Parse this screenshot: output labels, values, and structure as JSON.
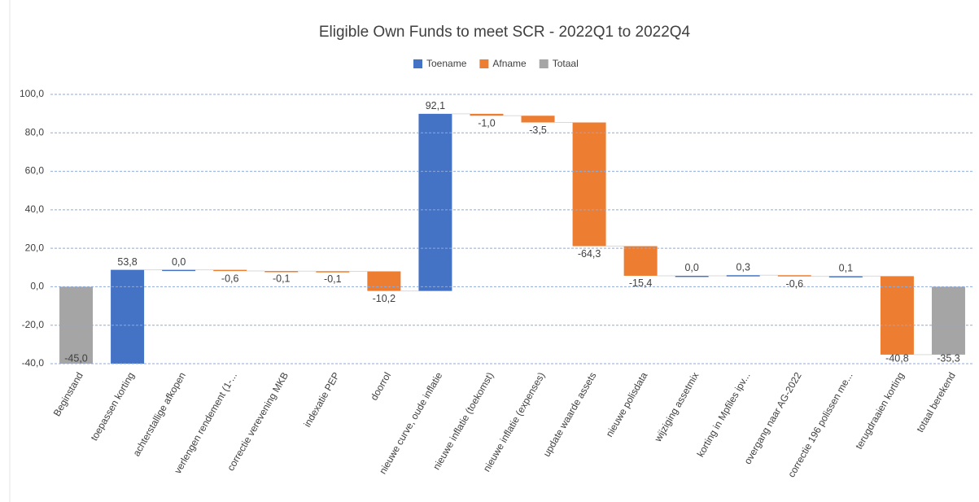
{
  "chart_data": {
    "type": "waterfall",
    "title": "Eligible Own Funds to meet SCR - 2022Q1 to 2022Q4",
    "categories": [
      "Beginstand",
      "toepassen korting",
      "achterstallige afkopen",
      "verlengen rendement (1-...",
      "correctie verevening MKB",
      "indexatie PEP",
      "doorrol",
      "nieuwe curve, oude inflatie",
      "nieuwe inflatie (toekomst)",
      "nieuwe inflatie (expenses)",
      "update waarde assets",
      "nieuwe polisdata",
      "wijziging assetmix",
      "korting in Mpfiles ipv...",
      "overgang naar AG-2022",
      "correctie 196 polissen me...",
      "terugdraaien korting",
      "totaal berekend"
    ],
    "series": [
      {
        "name": "Toename",
        "color": "#4472c4",
        "values": [
          null,
          53.8,
          0.0,
          null,
          null,
          null,
          null,
          92.1,
          null,
          null,
          null,
          null,
          0.0,
          0.3,
          null,
          0.1,
          null,
          null
        ],
        "value_labels": [
          null,
          "53,8",
          "0,0",
          null,
          null,
          null,
          null,
          "92,1",
          null,
          null,
          null,
          null,
          "0,0",
          "0,3",
          null,
          "0,1",
          null,
          null
        ]
      },
      {
        "name": "Afname",
        "color": "#ed7d31",
        "values": [
          null,
          null,
          null,
          -0.6,
          -0.1,
          -0.1,
          -10.2,
          null,
          -1.0,
          -3.5,
          -64.3,
          -15.4,
          null,
          null,
          -0.6,
          null,
          -40.8,
          null
        ],
        "value_labels": [
          null,
          null,
          null,
          "-0,6",
          "-0,1",
          "-0,1",
          "-10,2",
          null,
          "-1,0",
          "-3,5",
          "-64,3",
          "-15,4",
          null,
          null,
          "-0,6",
          null,
          "-40,8",
          null
        ]
      },
      {
        "name": "Totaal",
        "color": "#a5a5a5",
        "values": [
          -45.0,
          null,
          null,
          null,
          null,
          null,
          null,
          null,
          null,
          null,
          null,
          null,
          null,
          null,
          null,
          null,
          null,
          -35.3
        ],
        "value_labels": [
          "-45,0",
          null,
          null,
          null,
          null,
          null,
          null,
          null,
          null,
          null,
          null,
          null,
          null,
          null,
          null,
          null,
          null,
          "-35,3"
        ]
      }
    ],
    "ylim": [
      -40,
      100
    ],
    "yticks": [
      {
        "value": -40,
        "label": "-40,0"
      },
      {
        "value": -20,
        "label": "-20,0"
      },
      {
        "value": 0,
        "label": "0,0"
      },
      {
        "value": 20,
        "label": "20,0"
      },
      {
        "value": 40,
        "label": "40,0"
      },
      {
        "value": 60,
        "label": "60,0"
      },
      {
        "value": 80,
        "label": "80,0"
      },
      {
        "value": 100,
        "label": "100,0"
      }
    ],
    "grid": true,
    "legend": "top"
  }
}
